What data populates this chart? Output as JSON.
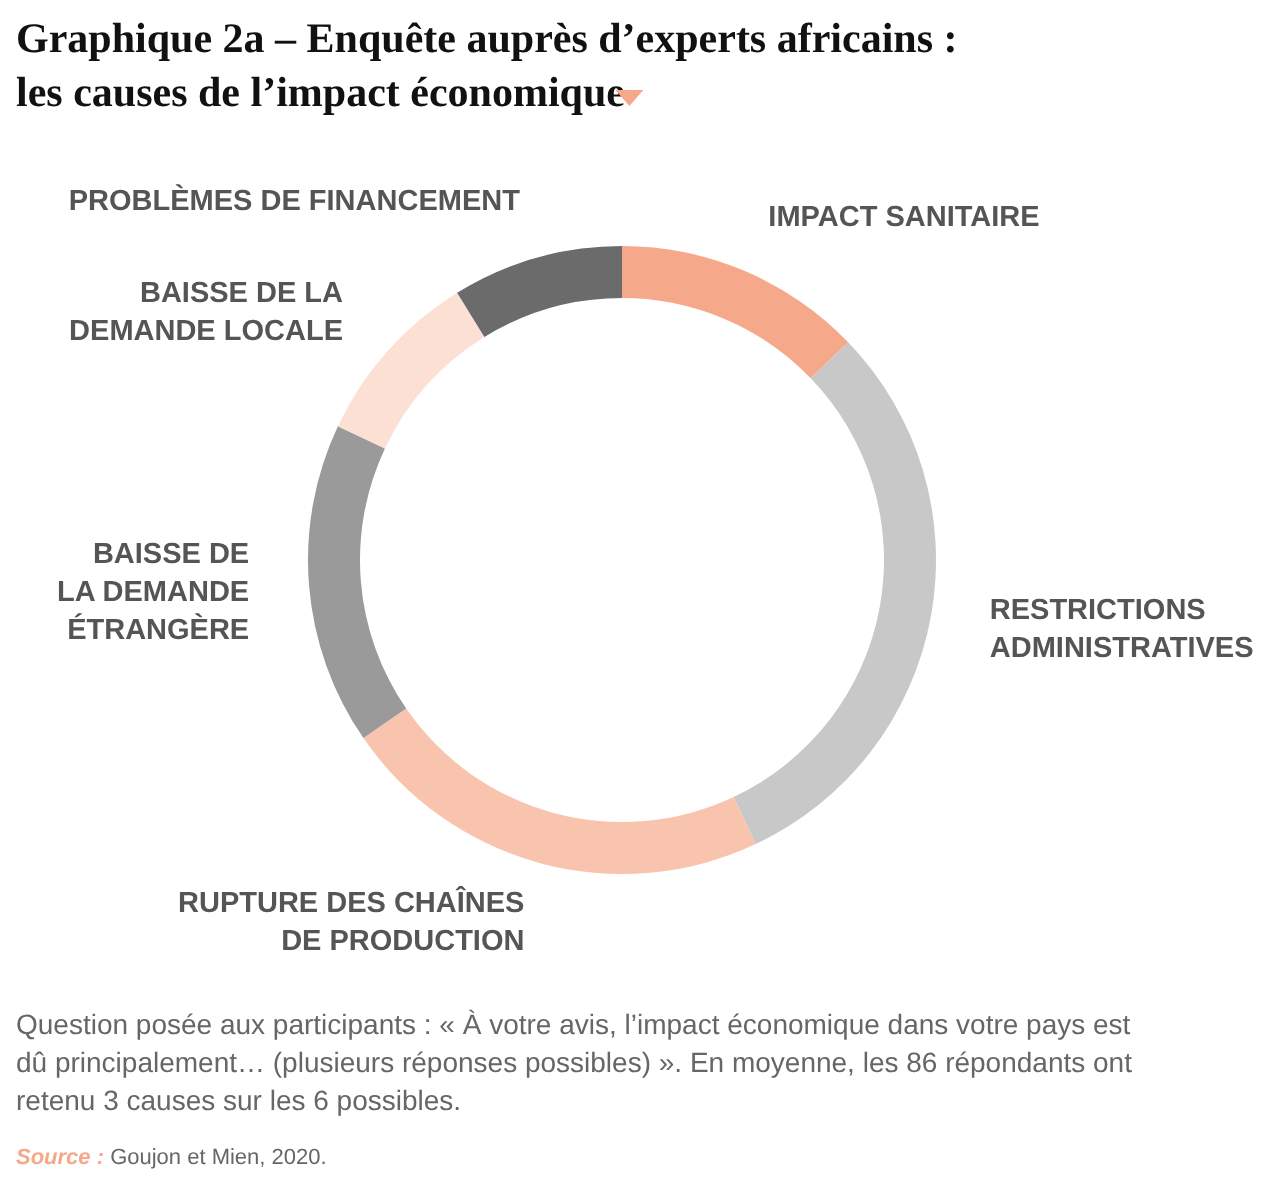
{
  "chart_data": {
    "type": "donut",
    "title": "Graphique 2a – Enquête auprès d’experts africains :\nles causes de l’impact économique",
    "categories": [
      "IMPACT SANITAIRE",
      "RESTRICTIONS\nADMINISTRATIVES",
      "RUPTURE DES CHAÎNES\nDE PRODUCTION",
      "BAISSE DE\nLA DEMANDE\nÉTRANGÈRE",
      "BAISSE DE LA\nDEMANDE LOCALE",
      "PROBLÈMES DE FINANCEMENT"
    ],
    "values": [
      12.8,
      30.2,
      22.4,
      16.6,
      9.2,
      8.8
    ],
    "colors": [
      "#f5a98a",
      "#c8c8c8",
      "#f9c4ae",
      "#9a9a9a",
      "#fde0d4",
      "#6b6b6b"
    ],
    "annotations": [
      "Question posée aux participants : « À votre avis, l’impact économique dans votre pays est dû principalement… (plusieurs réponses possibles) ». En moyenne, les 86 répondants ont retenu 3 causes sur les 6 possibles.",
      "Source : Goujon et Mien, 2020."
    ]
  }
}
